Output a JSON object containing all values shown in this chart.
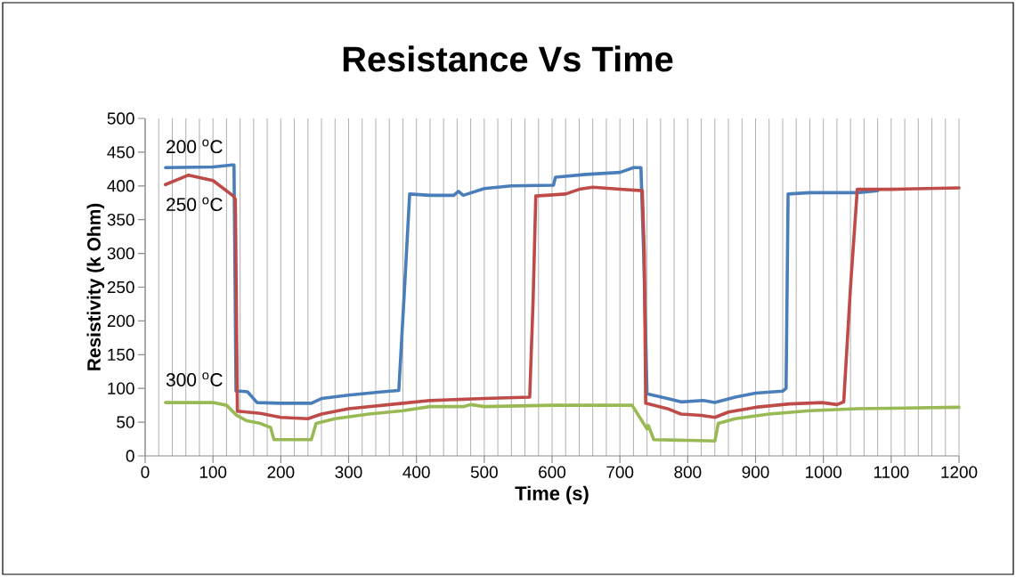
{
  "chart_data": {
    "type": "line",
    "title": "Resistance Vs Time",
    "xlabel": "Time (s)",
    "ylabel": "Resistivity (k Ohm)",
    "xlim": [
      0,
      1200
    ],
    "ylim": [
      0,
      500
    ],
    "xticks": [
      0,
      {
        "value": 20,
        "label": null
      },
      {
        "value": 40,
        "label": null
      },
      {
        "value": 60,
        "label": null
      },
      {
        "value": 80,
        "label": null
      },
      100,
      {
        "value": 120,
        "label": null
      },
      {
        "value": 140,
        "label": null
      },
      {
        "value": 160,
        "label": null
      },
      {
        "value": 180,
        "label": null
      },
      200,
      {
        "value": 220,
        "label": null
      },
      {
        "value": 240,
        "label": null
      },
      {
        "value": 260,
        "label": null
      },
      {
        "value": 280,
        "label": null
      },
      300,
      {
        "value": 320,
        "label": null
      },
      {
        "value": 340,
        "label": null
      },
      {
        "value": 360,
        "label": null
      },
      {
        "value": 380,
        "label": null
      },
      400,
      {
        "value": 420,
        "label": null
      },
      {
        "value": 440,
        "label": null
      },
      {
        "value": 460,
        "label": null
      },
      {
        "value": 480,
        "label": null
      },
      500,
      {
        "value": 520,
        "label": null
      },
      {
        "value": 540,
        "label": null
      },
      {
        "value": 560,
        "label": null
      },
      {
        "value": 580,
        "label": null
      },
      600,
      {
        "value": 620,
        "label": null
      },
      {
        "value": 640,
        "label": null
      },
      {
        "value": 660,
        "label": null
      },
      {
        "value": 680,
        "label": null
      },
      700,
      {
        "value": 720,
        "label": null
      },
      {
        "value": 740,
        "label": null
      },
      {
        "value": 760,
        "label": null
      },
      {
        "value": 780,
        "label": null
      },
      800,
      {
        "value": 820,
        "label": null
      },
      {
        "value": 840,
        "label": null
      },
      {
        "value": 860,
        "label": null
      },
      {
        "value": 880,
        "label": null
      },
      900,
      {
        "value": 920,
        "label": null
      },
      {
        "value": 940,
        "label": null
      },
      {
        "value": 960,
        "label": null
      },
      {
        "value": 980,
        "label": null
      },
      1000,
      {
        "value": 1020,
        "label": null
      },
      {
        "value": 1040,
        "label": null
      },
      {
        "value": 1060,
        "label": null
      },
      {
        "value": 1080,
        "label": null
      },
      1100,
      {
        "value": 1120,
        "label": null
      },
      {
        "value": 1140,
        "label": null
      },
      {
        "value": 1160,
        "label": null
      },
      {
        "value": 1180,
        "label": null
      },
      1200
    ],
    "yticks": [
      0,
      50,
      100,
      150,
      200,
      250,
      300,
      350,
      400,
      450,
      500
    ],
    "grid": "x",
    "marker": "none",
    "line_style": "solid",
    "series": [
      {
        "name": "200 $^{o}$C",
        "color": "#4a7ebb",
        "x": [
          30,
          100,
          128,
          131,
          134,
          140,
          151,
          165,
          200,
          245,
          260,
          300,
          350,
          374,
          382,
          390,
          420,
          455,
          462,
          469,
          500,
          540,
          602,
          605,
          650,
          700,
          720,
          731,
          735,
          740,
          770,
          790,
          823,
          840,
          870,
          900,
          940,
          945,
          948,
          980,
          1050,
          1080
        ],
        "values": [
          427,
          428,
          431,
          431,
          96,
          96,
          95,
          79,
          78,
          78,
          85,
          90,
          95,
          97,
          240,
          388,
          386,
          386,
          392,
          386,
          396,
          400,
          401,
          413,
          417,
          420,
          427,
          427,
          300,
          92,
          85,
          80,
          82,
          79,
          87,
          93,
          96,
          100,
          388,
          390,
          390,
          393
        ]
      },
      {
        "name": "250 $^{o}$C",
        "color": "#be4b48",
        "x": [
          30,
          64,
          100,
          130,
          133,
          136,
          140,
          170,
          200,
          240,
          260,
          300,
          380,
          420,
          500,
          567,
          572,
          576,
          620,
          640,
          660,
          700,
          733,
          736,
          738,
          770,
          790,
          820,
          840,
          860,
          900,
          950,
          998,
          1020,
          1030,
          1040,
          1050,
          1100,
          1200
        ],
        "values": [
          402,
          416,
          408,
          385,
          380,
          66,
          66,
          63,
          57,
          55,
          62,
          70,
          78,
          82,
          85,
          87,
          230,
          385,
          388,
          395,
          398,
          395,
          393,
          300,
          78,
          70,
          62,
          60,
          57,
          65,
          72,
          77,
          79,
          76,
          80,
          250,
          395,
          395,
          397
        ]
      },
      {
        "name": "300 $^{o}$C",
        "color": "#98b954",
        "x": [
          30,
          100,
          120,
          135,
          150,
          170,
          185,
          190,
          245,
          252,
          280,
          330,
          380,
          420,
          469,
          480,
          500,
          600,
          718,
          740,
          742,
          750,
          800,
          840,
          845,
          870,
          920,
          980,
          1050,
          1200
        ],
        "values": [
          79,
          79,
          75,
          60,
          52,
          48,
          42,
          24,
          24,
          48,
          55,
          62,
          67,
          73,
          73,
          76,
          73,
          75,
          75,
          40,
          45,
          24,
          23,
          22,
          48,
          55,
          62,
          67,
          70,
          72
        ]
      }
    ]
  }
}
